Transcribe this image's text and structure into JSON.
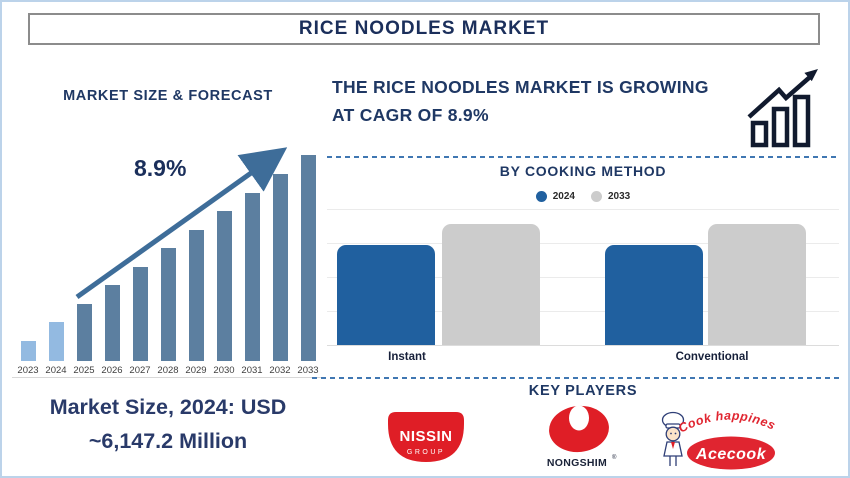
{
  "title": "RICE NOODLES MARKET",
  "forecast_section": {
    "heading": "MARKET SIZE & FORECAST",
    "growth_label": "8.9%",
    "caption_line1": "Market Size, 2024: USD",
    "caption_line2": "~6,147.2 Million"
  },
  "cagr_banner": {
    "line1": "THE RICE NOODLES MARKET IS GROWING",
    "line2": "AT CAGR OF 8.9%"
  },
  "cooking_method_section": {
    "heading": "BY COOKING METHOD",
    "category_labels": [
      "Instant",
      "Conventional"
    ]
  },
  "key_players_section": {
    "heading": "KEY PLAYERS",
    "nissin": {
      "text": "NISSIN",
      "subtext": "GROUP"
    },
    "nongshim": {
      "text": "NONGSHIM",
      "reg_mark": "®"
    },
    "acecook": {
      "tagline": "Cook happiness",
      "text": "Acecook"
    }
  },
  "chart_data": [
    {
      "id": "market-size-forecast",
      "type": "bar",
      "title": "MARKET SIZE & FORECAST",
      "categories": [
        "2023",
        "2024",
        "2025",
        "2026",
        "2027",
        "2028",
        "2029",
        "2030",
        "2031",
        "2032",
        "2033"
      ],
      "values": [
        20,
        39,
        57,
        76,
        94,
        113,
        131,
        150,
        168,
        187,
        206
      ],
      "value_note": "relative bar heights in pixels; the chart displays no numeric value axis",
      "annotation": "8.9%",
      "annotation_meaning": "CAGR growth arrow over forecast bars",
      "historical_categories": [
        "2023",
        "2024"
      ],
      "bar_colors": {
        "historical": "#93BAE1",
        "forecast": "#5C7FA0"
      },
      "xlabel": "",
      "ylabel": "",
      "grid": false
    },
    {
      "id": "by-cooking-method",
      "type": "bar",
      "title": "BY COOKING METHOD",
      "categories": [
        "Instant",
        "Conventional"
      ],
      "series": [
        {
          "name": "2024",
          "values": [
            100,
            100
          ],
          "color": "#20609F"
        },
        {
          "name": "2033",
          "values": [
            121,
            121
          ],
          "color": "#CCCCCC"
        }
      ],
      "value_note": "relative bar heights in pixels; the chart displays no numeric value axis",
      "grid": true,
      "legend_position": "top"
    }
  ],
  "colors": {
    "heading_navy": "#1F3864",
    "title_navy": "#1B2F5B",
    "caption_navy": "#293A69",
    "page_border_blue": "#BCD3EA",
    "title_box_border": "#8C8C8C",
    "dashed_divider_blue": "#4077B2",
    "arrow_blue": "#3E6D99",
    "growth_icon_ink": "#111A2E",
    "logo_red": "#DF1E26"
  }
}
